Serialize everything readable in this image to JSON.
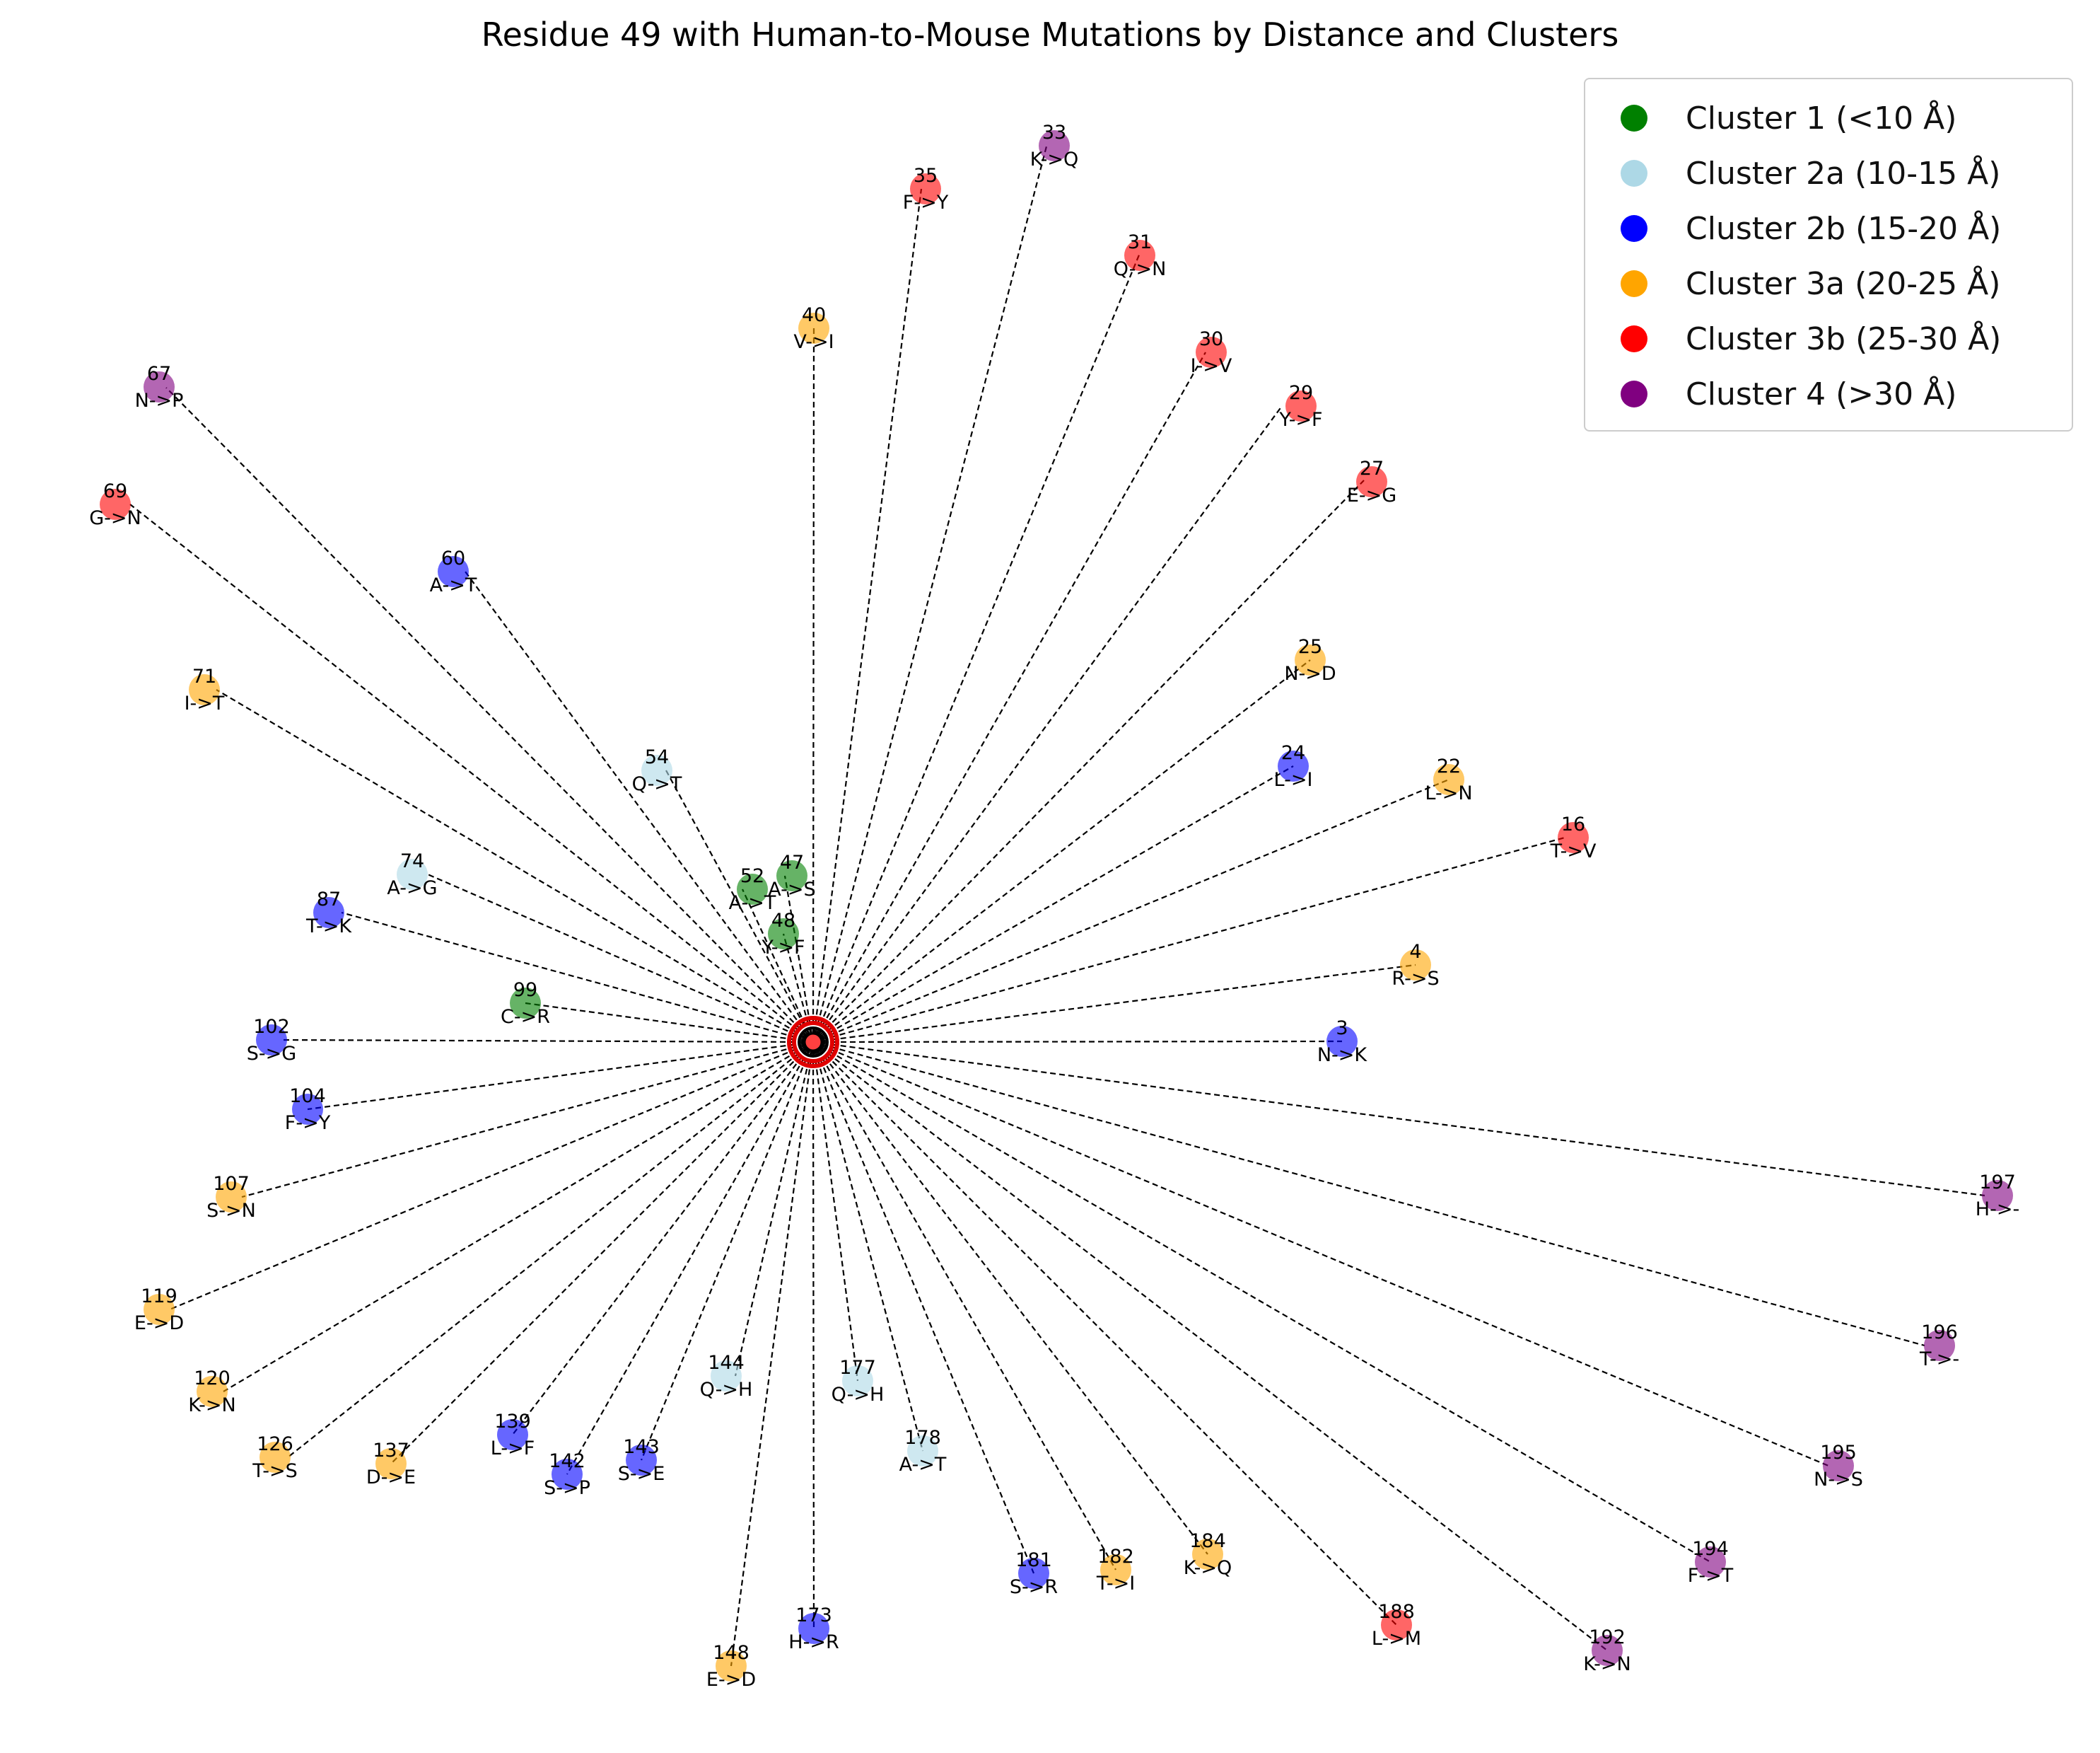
{
  "title": "Residue 49 with Human-to-Mouse Mutations by Distance and Clusters",
  "center": {
    "residue": "49"
  },
  "clusters": [
    {
      "id": 1,
      "label": "Cluster 1 (<10 Å)",
      "color": "#008000"
    },
    {
      "id": 2,
      "label": "Cluster 2a (10-15 Å)",
      "color": "#add8e6"
    },
    {
      "id": 3,
      "label": "Cluster 2b (15-20 Å)",
      "color": "#0000ff"
    },
    {
      "id": 4,
      "label": "Cluster 3a (20-25 Å)",
      "color": "#ffa500"
    },
    {
      "id": 5,
      "label": "Cluster 3b (25-30 Å)",
      "color": "#ff0000"
    },
    {
      "id": 6,
      "label": "Cluster 4 (>30 Å)",
      "color": "#800080"
    }
  ],
  "nodes": [
    {
      "residue": "33",
      "mutation": "K->Q",
      "cluster": 6
    },
    {
      "residue": "35",
      "mutation": "F->Y",
      "cluster": 5
    },
    {
      "residue": "31",
      "mutation": "Q->N",
      "cluster": 5
    },
    {
      "residue": "40",
      "mutation": "V->I",
      "cluster": 4
    },
    {
      "residue": "30",
      "mutation": "I->V",
      "cluster": 5
    },
    {
      "residue": "29",
      "mutation": "Y->F",
      "cluster": 5
    },
    {
      "residue": "67",
      "mutation": "N->P",
      "cluster": 6
    },
    {
      "residue": "27",
      "mutation": "E->G",
      "cluster": 5
    },
    {
      "residue": "69",
      "mutation": "G->N",
      "cluster": 5
    },
    {
      "residue": "60",
      "mutation": "A->T",
      "cluster": 3
    },
    {
      "residue": "25",
      "mutation": "N->D",
      "cluster": 4
    },
    {
      "residue": "71",
      "mutation": "I->T",
      "cluster": 4
    },
    {
      "residue": "24",
      "mutation": "L->I",
      "cluster": 3
    },
    {
      "residue": "54",
      "mutation": "Q->T",
      "cluster": 2
    },
    {
      "residue": "22",
      "mutation": "L->N",
      "cluster": 4
    },
    {
      "residue": "16",
      "mutation": "T->V",
      "cluster": 5
    },
    {
      "residue": "47",
      "mutation": "A->S",
      "cluster": 1
    },
    {
      "residue": "52",
      "mutation": "A->T",
      "cluster": 1
    },
    {
      "residue": "74",
      "mutation": "A->G",
      "cluster": 2
    },
    {
      "residue": "48",
      "mutation": "Y->F",
      "cluster": 1
    },
    {
      "residue": "87",
      "mutation": "T->K",
      "cluster": 3
    },
    {
      "residue": "4",
      "mutation": "R->S",
      "cluster": 4
    },
    {
      "residue": "99",
      "mutation": "C->R",
      "cluster": 1
    },
    {
      "residue": "102",
      "mutation": "S->G",
      "cluster": 3
    },
    {
      "residue": "3",
      "mutation": "N->K",
      "cluster": 3
    },
    {
      "residue": "104",
      "mutation": "F->Y",
      "cluster": 3
    },
    {
      "residue": "197",
      "mutation": "H->-",
      "cluster": 6
    },
    {
      "residue": "107",
      "mutation": "S->N",
      "cluster": 4
    },
    {
      "residue": "119",
      "mutation": "E->D",
      "cluster": 4
    },
    {
      "residue": "196",
      "mutation": "T->-",
      "cluster": 6
    },
    {
      "residue": "144",
      "mutation": "Q->H",
      "cluster": 2
    },
    {
      "residue": "177",
      "mutation": "Q->H",
      "cluster": 2
    },
    {
      "residue": "120",
      "mutation": "K->N",
      "cluster": 4
    },
    {
      "residue": "139",
      "mutation": "L->F",
      "cluster": 3
    },
    {
      "residue": "143",
      "mutation": "S->E",
      "cluster": 3
    },
    {
      "residue": "178",
      "mutation": "A->T",
      "cluster": 2
    },
    {
      "residue": "126",
      "mutation": "T->S",
      "cluster": 4
    },
    {
      "residue": "195",
      "mutation": "N->S",
      "cluster": 6
    },
    {
      "residue": "137",
      "mutation": "D->E",
      "cluster": 4
    },
    {
      "residue": "142",
      "mutation": "S->P",
      "cluster": 3
    },
    {
      "residue": "194",
      "mutation": "F->T",
      "cluster": 6
    },
    {
      "residue": "181",
      "mutation": "S->R",
      "cluster": 3
    },
    {
      "residue": "182",
      "mutation": "T->I",
      "cluster": 4
    },
    {
      "residue": "184",
      "mutation": "K->Q",
      "cluster": 4
    },
    {
      "residue": "173",
      "mutation": "H->R",
      "cluster": 3
    },
    {
      "residue": "188",
      "mutation": "L->M",
      "cluster": 5
    },
    {
      "residue": "192",
      "mutation": "K->N",
      "cluster": 6
    },
    {
      "residue": "148",
      "mutation": "E->D",
      "cluster": 4
    }
  ]
}
